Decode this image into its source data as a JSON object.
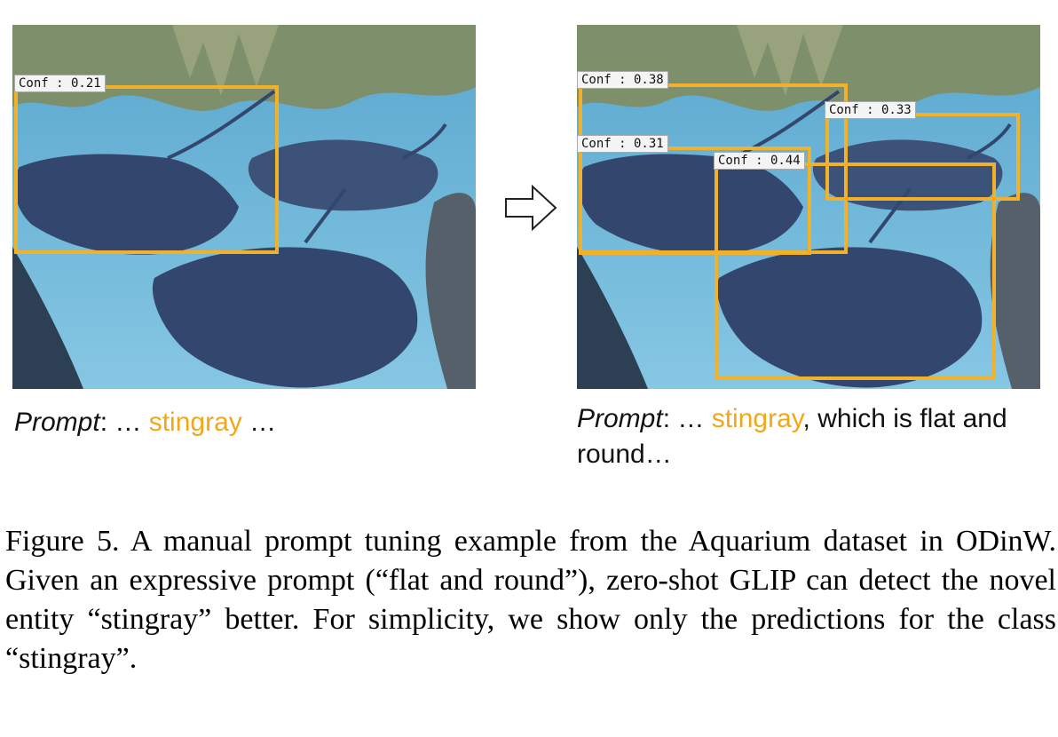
{
  "left_panel": {
    "prompt_prefix": "Prompt",
    "prompt_before": ": … ",
    "prompt_keyword": "stingray",
    "prompt_after": " …",
    "detections": [
      {
        "label": "Conf : 0.21"
      }
    ]
  },
  "right_panel": {
    "prompt_prefix": "Prompt",
    "prompt_before": ": … ",
    "prompt_keyword": "stingray",
    "prompt_after": ", which is flat and round…",
    "detections": [
      {
        "label": "Conf : 0.38"
      },
      {
        "label": "Conf : 0.33"
      },
      {
        "label": "Conf : 0.31"
      },
      {
        "label": "Conf : 0.44"
      }
    ]
  },
  "colors": {
    "highlight": "#f0a818",
    "box": "#f2b12b",
    "water": "#6fb7d8",
    "stingray": "#33476e"
  },
  "caption": "Figure 5.  A manual prompt tuning example from the Aquarium dataset in ODinW. Given an expressive prompt (“flat and round”), zero-shot GLIP can detect the novel entity “stingray” better. For simplicity, we show only the predictions for the class “stingray”."
}
